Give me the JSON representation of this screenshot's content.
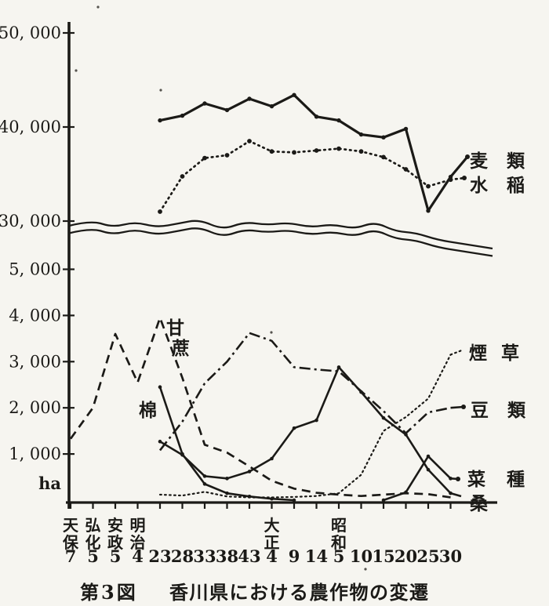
{
  "page": {
    "background": "#f6f5f0",
    "ink": "#1b1a17"
  },
  "caption": {
    "figure_label": "第3図",
    "title": "香川県における農作物の変遷"
  },
  "chart_data": {
    "type": "line",
    "title": "第3図 香川県における農作物の変遷",
    "ylabel": "ha",
    "unit_label": "ha",
    "broken_y_axis": true,
    "grid": false,
    "y_upper_ticks": [
      {
        "label": "50, 000",
        "value": 50000
      },
      {
        "label": "40, 000",
        "value": 40000
      },
      {
        "label": "30, 000",
        "value": 30000
      }
    ],
    "y_lower_ticks": [
      {
        "label": "5, 000",
        "value": 5000
      },
      {
        "label": "4, 000",
        "value": 4000
      },
      {
        "label": "3, 000",
        "value": 3000
      },
      {
        "label": "2, 000",
        "value": 2000
      },
      {
        "label": "1, 000",
        "value": 1000
      }
    ],
    "categories": [
      {
        "era": "天保",
        "year": "7"
      },
      {
        "era": "弘化",
        "year": "5"
      },
      {
        "era": "安政",
        "year": "5"
      },
      {
        "era": "明治",
        "year": "4"
      },
      {
        "era": "",
        "year": "23"
      },
      {
        "era": "",
        "year": "28"
      },
      {
        "era": "",
        "year": "33"
      },
      {
        "era": "",
        "year": "38"
      },
      {
        "era": "",
        "year": "43"
      },
      {
        "era": "大正",
        "year": "4"
      },
      {
        "era": "",
        "year": "9"
      },
      {
        "era": "",
        "year": "14"
      },
      {
        "era": "昭和",
        "year": "5"
      },
      {
        "era": "",
        "year": "10"
      },
      {
        "era": "",
        "year": "15"
      },
      {
        "era": "",
        "year": "20"
      },
      {
        "era": "",
        "year": "25"
      },
      {
        "era": "",
        "year": "30"
      }
    ],
    "series": [
      {
        "name": "甘蔗",
        "label": "甘蔗",
        "section": "lower",
        "style": "dashed",
        "marker": false,
        "values": [
          1330,
          2000,
          3600,
          2550,
          3950,
          2650,
          1200,
          1030,
          730,
          420,
          250,
          160,
          120,
          90,
          120,
          150,
          130,
          60
        ]
      },
      {
        "name": "棉",
        "label": "棉",
        "section": "lower",
        "style": "solid",
        "marker": true,
        "values": [
          null,
          null,
          null,
          null,
          2450,
          1000,
          350,
          150,
          80,
          30,
          0,
          null,
          null,
          null,
          null,
          null,
          null,
          null
        ]
      },
      {
        "name": "豆類",
        "label": "豆 類",
        "section": "lower",
        "style": "dashdot",
        "marker": false,
        "values": [
          null,
          null,
          null,
          null,
          1080,
          1700,
          2530,
          3000,
          3620,
          3450,
          2880,
          2830,
          2790,
          2360,
          1930,
          1450,
          1900,
          2000
        ]
      },
      {
        "name": "煙草",
        "label": "煙 草",
        "section": "lower",
        "style": "fine-dotted",
        "marker": false,
        "values": [
          null,
          null,
          null,
          null,
          120,
          100,
          180,
          80,
          60,
          60,
          70,
          90,
          150,
          550,
          1500,
          1800,
          2200,
          3150
        ]
      },
      {
        "name": "桑",
        "label": "桑",
        "section": "lower",
        "style": "solid",
        "marker": true,
        "values": [
          null,
          null,
          null,
          null,
          1270,
          980,
          520,
          470,
          620,
          900,
          1560,
          1730,
          2880,
          2340,
          1780,
          1420,
          660,
          150
        ]
      },
      {
        "name": "菜種",
        "label": "菜 種",
        "section": "lower",
        "style": "solid",
        "marker": true,
        "values": [
          null,
          null,
          null,
          null,
          null,
          null,
          null,
          null,
          null,
          null,
          null,
          null,
          null,
          null,
          0,
          170,
          950,
          470
        ]
      },
      {
        "name": "水稲",
        "label": "水 稲",
        "section": "upper",
        "style": "dotted",
        "marker": true,
        "values": [
          null,
          null,
          null,
          null,
          31000,
          34750,
          36700,
          37000,
          38500,
          37400,
          37300,
          37500,
          37700,
          37400,
          36800,
          35500,
          33700,
          34400
        ]
      },
      {
        "name": "麦類",
        "label": "麦 類",
        "section": "upper",
        "style": "solid-thick",
        "marker": true,
        "values": [
          null,
          null,
          null,
          null,
          40700,
          41200,
          42500,
          41800,
          43000,
          42200,
          43400,
          41100,
          40700,
          39200,
          38900,
          39800,
          31100,
          34700
        ]
      }
    ]
  }
}
